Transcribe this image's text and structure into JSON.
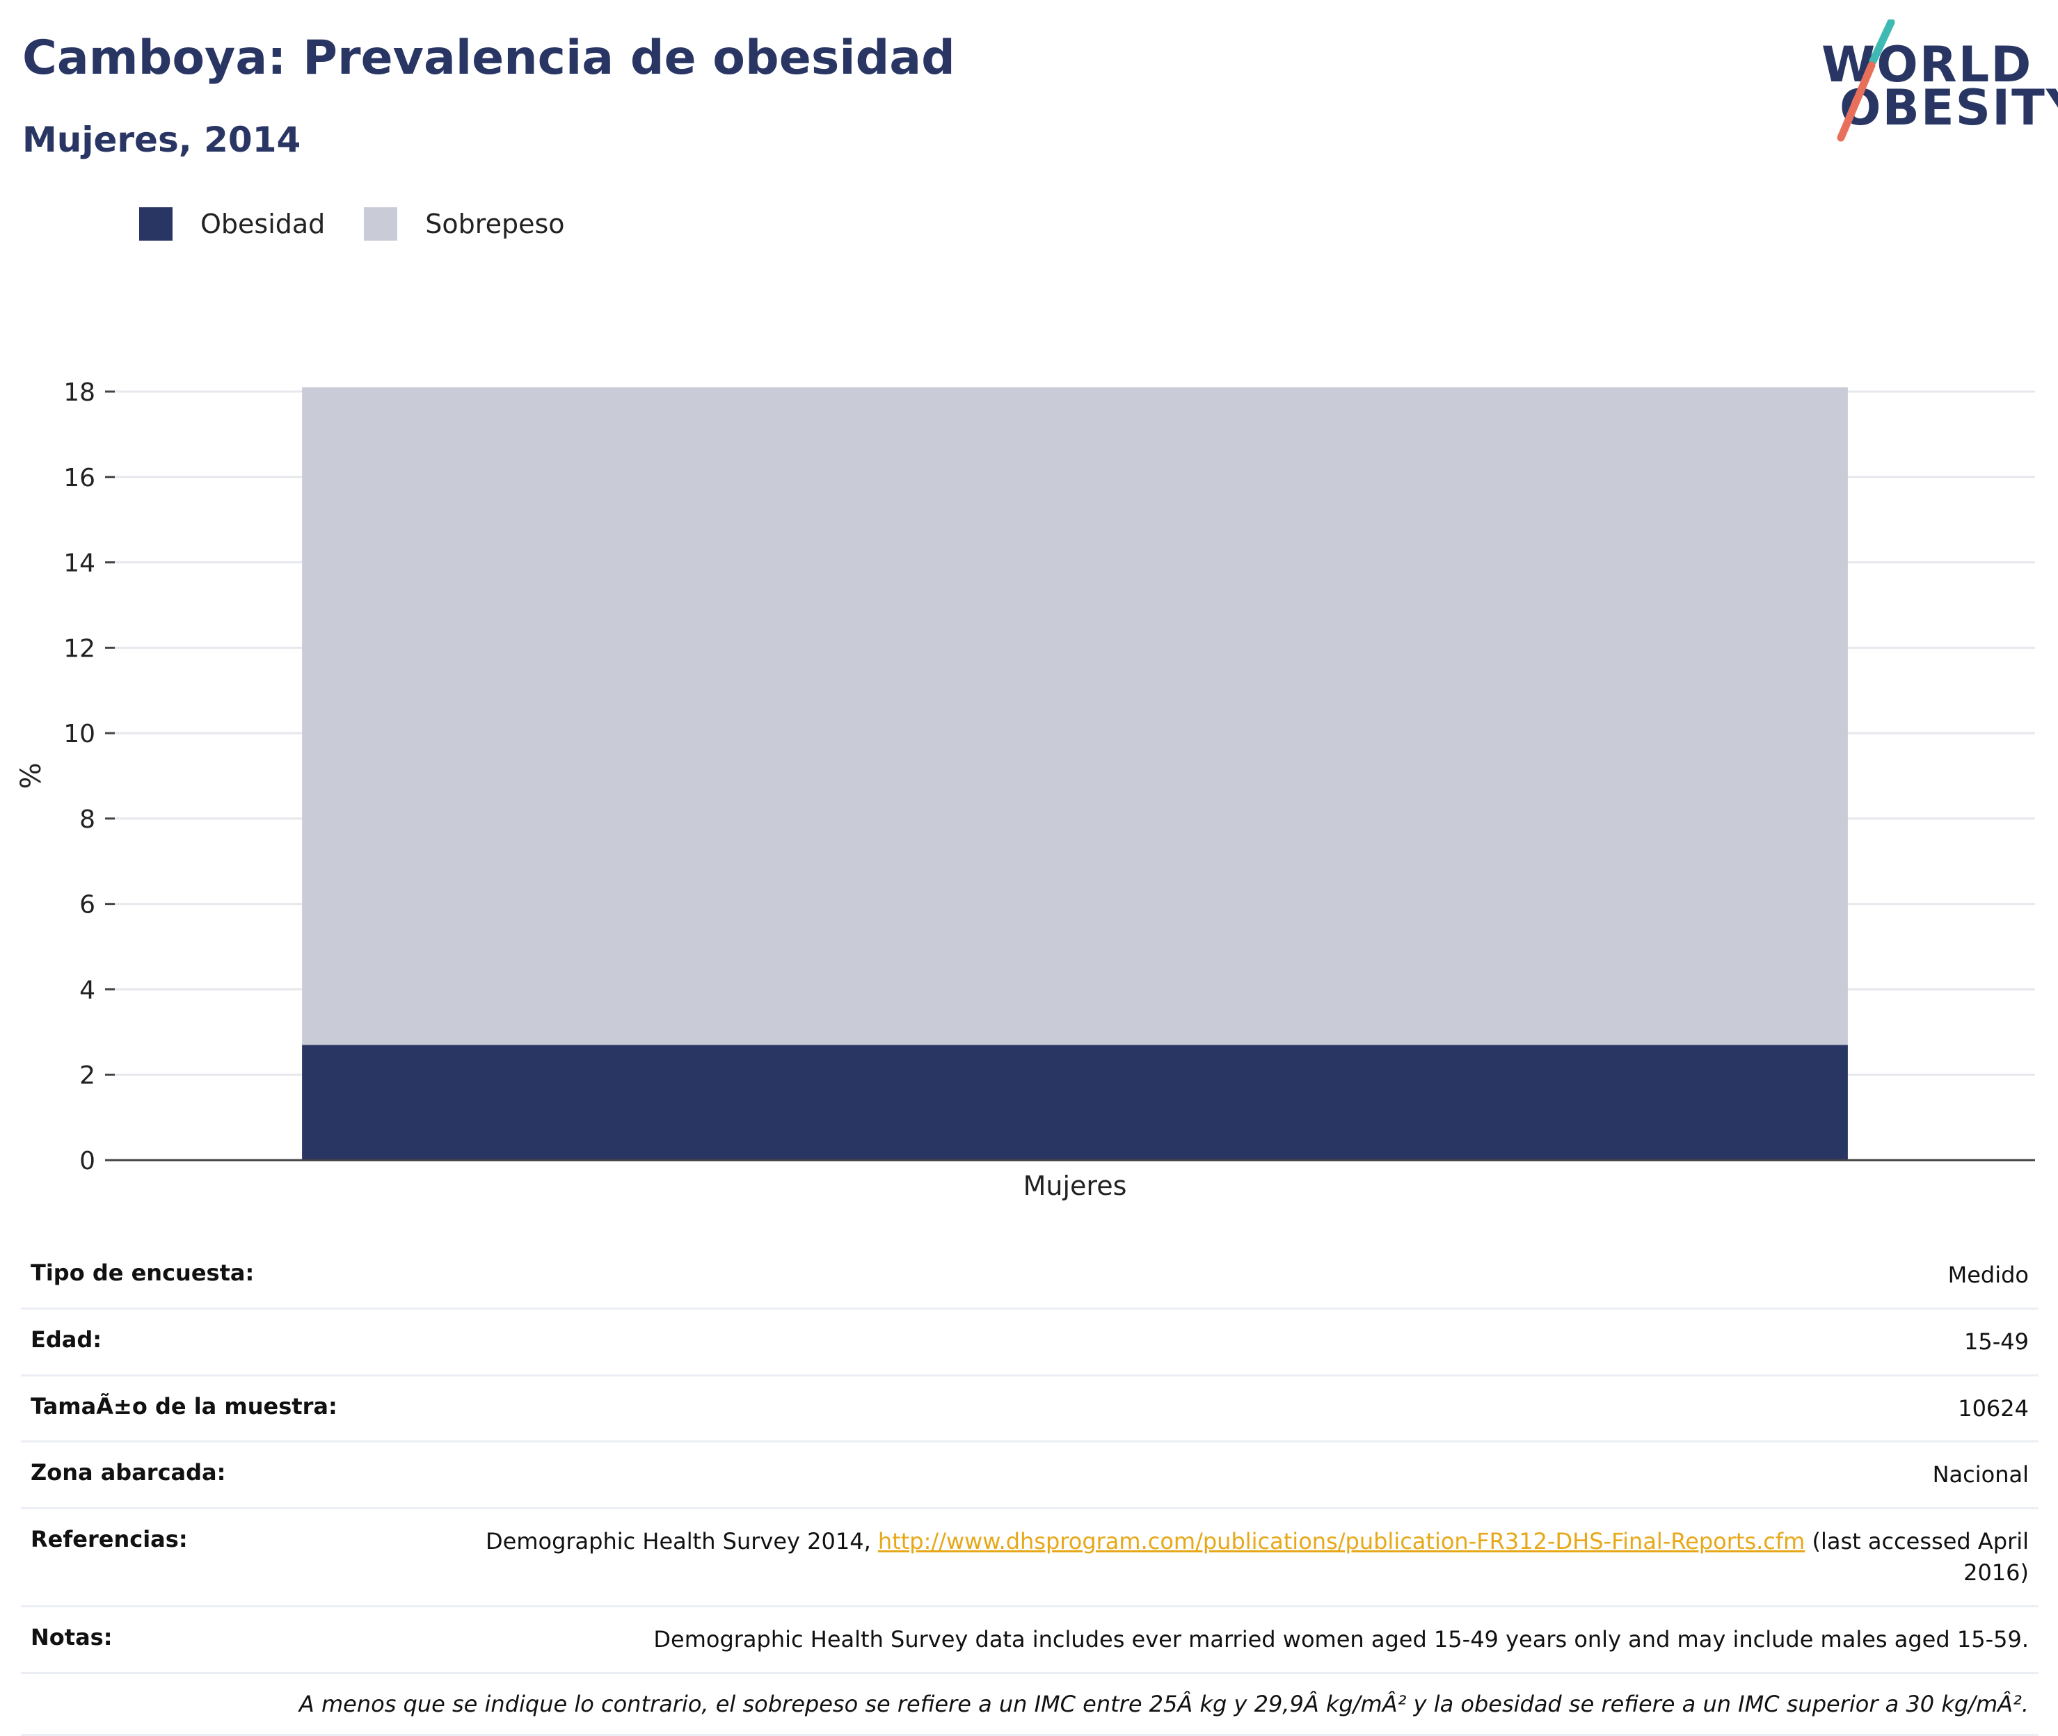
{
  "header": {
    "title": "Camboya: Prevalencia de obesidad",
    "subtitle": "Mujeres, 2014"
  },
  "logo": {
    "line1": "WORLD",
    "line2": "OBESITY"
  },
  "colors": {
    "obesity": "#293664",
    "overweight": "#c9ccd7",
    "link": "#e6a817",
    "logo_teal": "#3fb9b3",
    "logo_coral": "#e8705b"
  },
  "chart_data": {
    "type": "bar",
    "stacked": true,
    "categories": [
      "Mujeres"
    ],
    "series": [
      {
        "name": "Obesidad",
        "values": [
          2.7
        ]
      },
      {
        "name": "Sobrepeso",
        "values": [
          15.4
        ]
      }
    ],
    "totals": [
      18.1
    ],
    "title": "",
    "xlabel": "",
    "ylabel": "%",
    "ylim": [
      0,
      18
    ],
    "yticks": [
      "0",
      "2",
      "4",
      "6",
      "8",
      "10",
      "12",
      "14",
      "16",
      "18"
    ],
    "grid": true,
    "legend": "top-left"
  },
  "info": {
    "rows": [
      {
        "label": "Tipo de encuesta:",
        "value": "Medido"
      },
      {
        "label": "Edad:",
        "value": "15-49"
      },
      {
        "label": "TamaÃ±o de la muestra:",
        "value": "10624"
      },
      {
        "label": "Zona abarcada:",
        "value": "Nacional"
      }
    ],
    "references": {
      "label": "Referencias:",
      "prefix": "Demographic Health Survey 2014, ",
      "link": "http://www.dhsprogram.com/publications/publication-FR312-DHS-Final-Reports.cfm",
      "suffix": " (last accessed April 2016)"
    },
    "notes": {
      "label": "Notas:",
      "value": "Demographic Health Survey data includes ever married women aged 15-49 years only and may include males aged 15-59."
    },
    "footnote": "A menos que se indique lo contrario, el sobrepeso se refiere a un IMC entre 25Â kg y 29,9Â kg/mÂ² y la obesidad se refiere a un IMC superior a 30 kg/mÂ²."
  }
}
